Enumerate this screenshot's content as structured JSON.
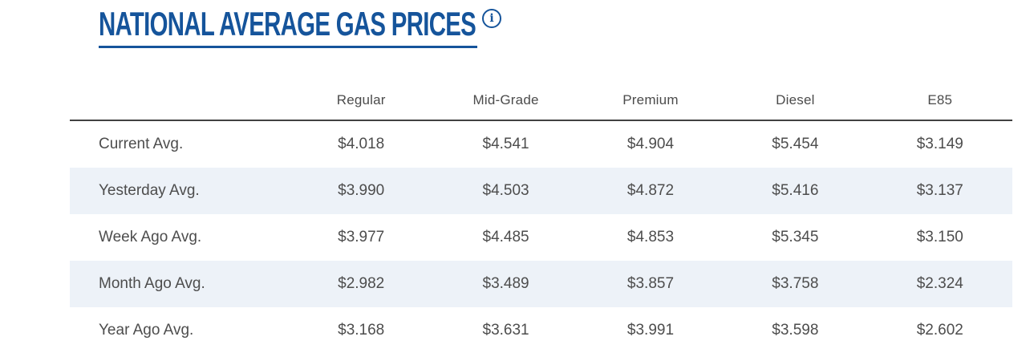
{
  "header": {
    "title": "NATIONAL AVERAGE GAS PRICES",
    "info_icon_glyph": "i"
  },
  "chart_data": {
    "type": "table",
    "title": "NATIONAL AVERAGE GAS PRICES",
    "columns": [
      "Regular",
      "Mid-Grade",
      "Premium",
      "Diesel",
      "E85"
    ],
    "rows": [
      {
        "label": "Current Avg.",
        "values": [
          "$4.018",
          "$4.541",
          "$4.904",
          "$5.454",
          "$3.149"
        ]
      },
      {
        "label": "Yesterday Avg.",
        "values": [
          "$3.990",
          "$4.503",
          "$4.872",
          "$5.416",
          "$3.137"
        ]
      },
      {
        "label": "Week Ago Avg.",
        "values": [
          "$3.977",
          "$4.485",
          "$4.853",
          "$5.345",
          "$3.150"
        ]
      },
      {
        "label": "Month Ago Avg.",
        "values": [
          "$2.982",
          "$3.489",
          "$3.857",
          "$3.758",
          "$2.324"
        ]
      },
      {
        "label": "Year Ago Avg.",
        "values": [
          "$3.168",
          "$3.631",
          "$3.991",
          "$3.598",
          "$2.602"
        ]
      }
    ],
    "layout": {
      "striped_rows": [
        2,
        4
      ],
      "header_rule": true,
      "grid": false
    }
  },
  "colors": {
    "title_blue": "#15549b",
    "stripe_blue": "#edf2f8",
    "header_rule_gray": "#414141",
    "text_gray": "#4d4d4d"
  }
}
